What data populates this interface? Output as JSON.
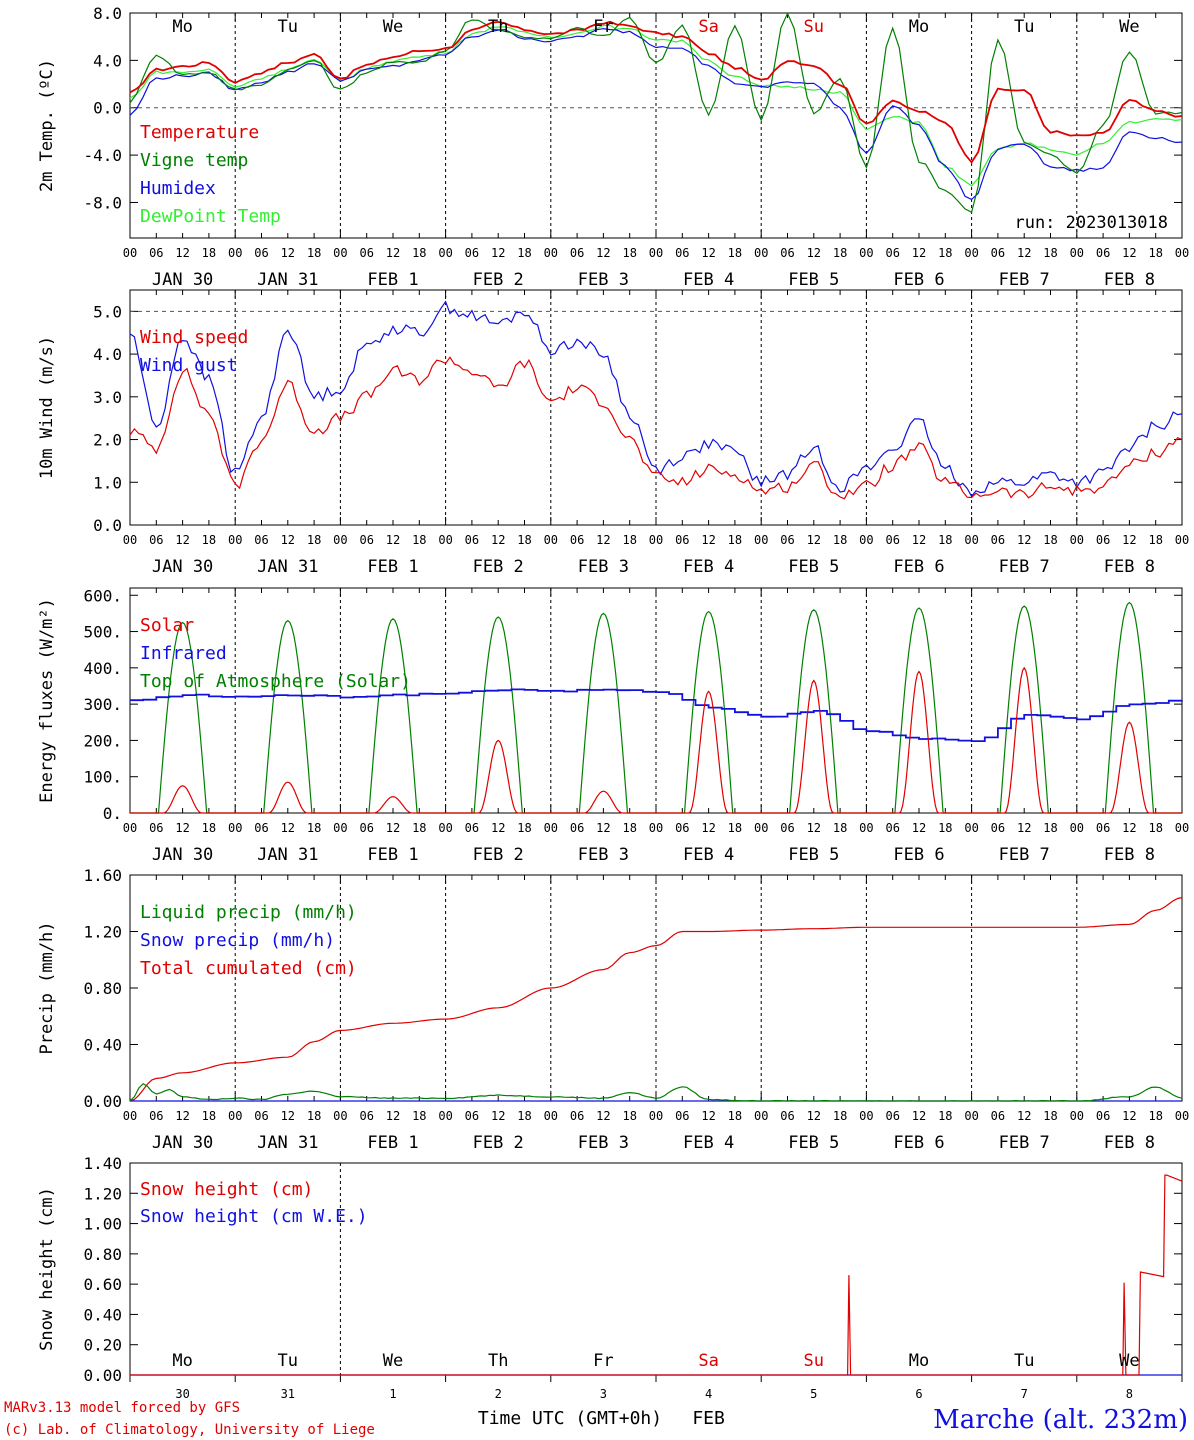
{
  "colors": {
    "red": "#e00000",
    "green": "#008000",
    "blue": "#1010e0",
    "lightgreen": "#33ee33",
    "black": "#000000"
  },
  "day_names": [
    "Mo",
    "Tu",
    "We",
    "Th",
    "Fr",
    "Sa",
    "Su",
    "Mo",
    "Tu",
    "We"
  ],
  "weekend_indices": [
    5,
    6
  ],
  "date_labels": [
    "JAN 30",
    "JAN 31",
    "FEB  1",
    "FEB  2",
    "FEB  3",
    "FEB  4",
    "FEB  5",
    "FEB  6",
    "FEB  7",
    "FEB  8"
  ],
  "hour_labels": [
    "00",
    "06",
    "12",
    "18"
  ],
  "hour_label_end": "00",
  "bottom_day_numbers": [
    "30",
    "31",
    "1",
    "2",
    "3",
    "4",
    "5",
    "6",
    "7",
    "8"
  ],
  "run_label": "run: 2023013018",
  "footer": {
    "model": "MARv3.13 model forced by GFS",
    "lab": "(c) Lab. of Climatology, University of Liege",
    "time_axis": "Time UTC (GMT+0h)",
    "month": "FEB",
    "station": "Marche (alt. 232m)"
  },
  "chart_data": [
    {
      "type": "line",
      "id": "temperature",
      "ylabel": "2m Temp. (ºC)",
      "ylim": [
        -11,
        8
      ],
      "yticks": [
        "8.0",
        "4.0",
        "0.0",
        "-4.0",
        "-8.0"
      ],
      "ytick_values": [
        8,
        4,
        0,
        -4,
        -8
      ],
      "hgrid": [
        0
      ],
      "x_hours": [
        0,
        6,
        12,
        18,
        24,
        30,
        36,
        42,
        48,
        54,
        60,
        66,
        72,
        78,
        84,
        90,
        96,
        102,
        108,
        114,
        120,
        126,
        132,
        138,
        144,
        150,
        156,
        162,
        168,
        174,
        180,
        186,
        192,
        198,
        204,
        210,
        216,
        222,
        228,
        234,
        240
      ],
      "series": [
        {
          "name": "Temperature",
          "color": "red",
          "values": [
            1.2,
            3.2,
            3.5,
            3.8,
            2.2,
            3.0,
            3.8,
            4.5,
            2.5,
            3.6,
            4.3,
            4.8,
            5.0,
            6.5,
            7.2,
            6.6,
            6.2,
            6.5,
            7.2,
            6.9,
            6.3,
            6.0,
            4.6,
            3.4,
            2.3,
            4.0,
            3.6,
            2.0,
            -1.3,
            0.5,
            -0.3,
            -1.2,
            -4.5,
            1.5,
            1.5,
            -2.0,
            -2.4,
            -2.2,
            0.6,
            -0.3,
            -0.7
          ]
        },
        {
          "name": "Vigne temp",
          "color": "green",
          "values": [
            0.5,
            4.5,
            2.8,
            3.0,
            1.5,
            2.0,
            3.2,
            4.0,
            1.5,
            3.0,
            3.8,
            3.9,
            4.8,
            7.5,
            6.6,
            6.0,
            5.8,
            6.7,
            6.0,
            7.6,
            3.7,
            7.0,
            -0.5,
            6.9,
            -1.0,
            8.0,
            -0.5,
            2.5,
            -5.0,
            6.8,
            -4.5,
            -7.0,
            -8.8,
            5.8,
            -3.0,
            -4.0,
            -5.5,
            -1.5,
            4.8,
            -0.5,
            -0.4
          ]
        },
        {
          "name": "Humidex",
          "color": "blue",
          "values": [
            -0.6,
            2.5,
            2.7,
            2.9,
            1.5,
            2.2,
            3.0,
            3.8,
            2.3,
            3.2,
            3.5,
            4.0,
            4.5,
            6.0,
            6.6,
            5.9,
            5.6,
            6.0,
            6.6,
            6.4,
            5.2,
            5.1,
            3.5,
            2.1,
            1.7,
            2.2,
            2.0,
            0.0,
            -3.8,
            0.2,
            -1.5,
            -5.0,
            -7.8,
            -3.5,
            -3.0,
            -5.0,
            -5.3,
            -5.1,
            -2.0,
            -2.5,
            -2.9
          ]
        },
        {
          "name": "DewPoint Temp",
          "color": "lightgreen",
          "values": [
            0.8,
            3.0,
            3.0,
            3.2,
            1.8,
            2.5,
            3.3,
            4.0,
            2.3,
            3.3,
            4.0,
            4.3,
            4.7,
            6.2,
            6.9,
            6.3,
            6.0,
            6.3,
            6.9,
            6.6,
            5.8,
            5.6,
            4.0,
            2.6,
            1.8,
            1.8,
            1.6,
            1.3,
            -1.8,
            -0.8,
            -1.2,
            -5.0,
            -6.5,
            -3.5,
            -3.0,
            -3.5,
            -4.0,
            -3.0,
            -1.2,
            -1.0,
            -1.0
          ]
        }
      ]
    },
    {
      "type": "line",
      "id": "wind",
      "ylabel": "10m Wind (m/s)",
      "ylim": [
        0,
        5.5
      ],
      "yticks": [
        "5.0",
        "4.0",
        "3.0",
        "2.0",
        "1.0",
        "0.0"
      ],
      "ytick_values": [
        5,
        4,
        3,
        2,
        1,
        0
      ],
      "hgrid": [
        5
      ],
      "x_hours": [
        0,
        6,
        12,
        18,
        24,
        30,
        36,
        42,
        48,
        54,
        60,
        66,
        72,
        78,
        84,
        90,
        96,
        102,
        108,
        114,
        120,
        126,
        132,
        138,
        144,
        150,
        156,
        162,
        168,
        174,
        180,
        186,
        192,
        198,
        204,
        210,
        216,
        222,
        228,
        234,
        240
      ],
      "series": [
        {
          "name": "Wind speed",
          "color": "red",
          "values": [
            2.2,
            1.8,
            3.6,
            2.6,
            0.9,
            2.0,
            3.3,
            2.2,
            2.5,
            3.0,
            3.6,
            3.4,
            3.9,
            3.6,
            3.2,
            3.8,
            2.9,
            3.2,
            2.9,
            2.0,
            1.1,
            1.0,
            1.3,
            1.2,
            0.8,
            0.9,
            1.4,
            0.7,
            0.9,
            1.4,
            1.8,
            1.0,
            0.7,
            0.8,
            0.7,
            0.9,
            0.8,
            0.9,
            1.4,
            1.7,
            2.0
          ]
        },
        {
          "name": "Wind gust",
          "color": "blue",
          "values": [
            4.5,
            2.3,
            4.4,
            3.4,
            1.2,
            2.5,
            4.6,
            3.0,
            3.2,
            4.2,
            4.6,
            4.5,
            5.1,
            4.9,
            4.7,
            5.0,
            4.1,
            4.3,
            4.0,
            2.6,
            1.3,
            1.6,
            1.9,
            1.7,
            1.0,
            1.2,
            1.8,
            0.9,
            1.3,
            1.8,
            2.4,
            1.3,
            0.8,
            1.0,
            1.0,
            1.2,
            1.0,
            1.2,
            1.8,
            2.3,
            2.6
          ]
        }
      ]
    },
    {
      "type": "line",
      "id": "energy",
      "ylabel": "Energy fluxes (W/m²)",
      "ylim": [
        0,
        620
      ],
      "yticks": [
        "600.",
        "500.",
        "400.",
        "300.",
        "200.",
        "100.",
        "0."
      ],
      "ytick_values": [
        600,
        500,
        400,
        300,
        200,
        100,
        0
      ],
      "hgrid": [],
      "series": [
        {
          "name": "Solar",
          "color": "red",
          "daily_peak": [
            75,
            85,
            45,
            200,
            60,
            335,
            365,
            390,
            400,
            250
          ],
          "peak_hour": 12,
          "daylight_hours": [
            7.5,
            16.5
          ]
        },
        {
          "name": "Infrared",
          "color": "blue",
          "x_hours": [
            0,
            12,
            24,
            36,
            48,
            60,
            72,
            84,
            96,
            108,
            120,
            132,
            144,
            156,
            168,
            180,
            192,
            204,
            216,
            228,
            240
          ],
          "values": [
            310,
            325,
            320,
            325,
            320,
            325,
            330,
            340,
            335,
            340,
            335,
            290,
            265,
            280,
            225,
            205,
            200,
            270,
            260,
            300,
            310
          ]
        },
        {
          "name": "Top of Atmosphere (Solar)",
          "color": "green",
          "daily_peak": [
            525,
            530,
            535,
            540,
            550,
            555,
            560,
            565,
            570,
            580
          ],
          "peak_hour": 12,
          "daylight_hours": [
            6.5,
            17.5
          ]
        }
      ]
    },
    {
      "type": "line",
      "id": "precip",
      "ylabel": "Precip (mm/h)",
      "ylim": [
        0,
        1.6
      ],
      "yticks": [
        "1.60",
        "1.20",
        "0.80",
        "0.40",
        "0.00"
      ],
      "ytick_values": [
        1.6,
        1.2,
        0.8,
        0.4,
        0
      ],
      "hgrid": [],
      "series": [
        {
          "name": "Liquid precip (mm/h)",
          "color": "green",
          "x_hours": [
            0,
            3,
            6,
            9,
            12,
            18,
            24,
            30,
            36,
            42,
            48,
            60,
            72,
            84,
            96,
            108,
            114,
            120,
            126,
            132,
            144,
            168,
            192,
            216,
            228,
            234,
            240
          ],
          "values": [
            0,
            0.12,
            0.05,
            0.08,
            0.03,
            0.01,
            0.02,
            0.01,
            0.05,
            0.07,
            0.03,
            0.02,
            0.02,
            0.04,
            0.03,
            0.02,
            0.06,
            0.02,
            0.1,
            0.01,
            0,
            0,
            0,
            0,
            0.03,
            0.1,
            0.02
          ]
        },
        {
          "name": "Snow precip (mm/h)",
          "color": "blue",
          "x_hours": [
            0,
            240
          ],
          "values": [
            0,
            0
          ]
        },
        {
          "name": "Total cumulated (cm)",
          "color": "red",
          "x_hours": [
            0,
            6,
            12,
            24,
            36,
            42,
            48,
            60,
            72,
            84,
            96,
            108,
            114,
            120,
            126,
            132,
            144,
            156,
            168,
            192,
            216,
            228,
            234,
            240
          ],
          "values": [
            0,
            0.16,
            0.2,
            0.27,
            0.31,
            0.42,
            0.5,
            0.55,
            0.58,
            0.66,
            0.8,
            0.93,
            1.05,
            1.1,
            1.2,
            1.2,
            1.21,
            1.22,
            1.23,
            1.23,
            1.23,
            1.25,
            1.35,
            1.44
          ]
        }
      ]
    },
    {
      "type": "line",
      "id": "snow",
      "ylabel": "Snow height (cm)",
      "ylim": [
        0,
        1.4
      ],
      "yticks": [
        "1.40",
        "1.20",
        "1.00",
        "0.80",
        "0.60",
        "0.40",
        "0.20",
        "0.00"
      ],
      "ytick_values": [
        1.4,
        1.2,
        1.0,
        0.8,
        0.6,
        0.4,
        0.2,
        0
      ],
      "hgrid": [],
      "series": [
        {
          "name": "Snow height (cm)",
          "color": "red",
          "x_hours": [
            0,
            163.7,
            164,
            164.4,
            226.5,
            226.8,
            227.2,
            230.2,
            230.5,
            235.8,
            236.1,
            236.5,
            240
          ],
          "values": [
            0,
            0,
            0.66,
            0,
            0,
            0.61,
            0,
            0,
            0.68,
            0.65,
            1.32,
            1.32,
            1.28
          ]
        },
        {
          "name": "Snow height (cm W.E.)",
          "color": "blue",
          "x_hours": [
            0,
            240
          ],
          "values": [
            0,
            0
          ]
        }
      ]
    }
  ]
}
